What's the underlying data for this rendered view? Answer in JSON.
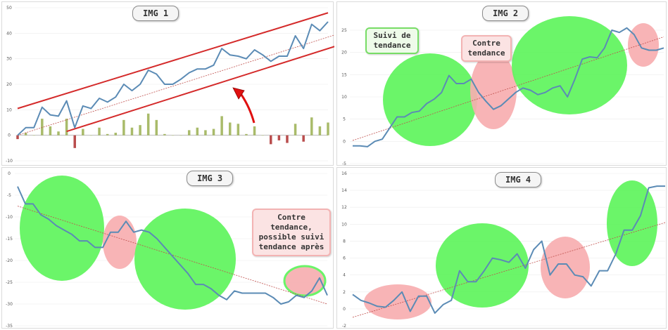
{
  "colors": {
    "line": "#5b8bb5",
    "channel": "#d42a2a",
    "trend": "#c0504d",
    "bar_pos": "#a9bb6a",
    "bar_neg": "#b94d4d",
    "ellipse_green": "#5ef45c",
    "ellipse_pink": "#f7aeb0",
    "arrow": "#e01010"
  },
  "chart_data": [
    {
      "type": "line",
      "title": "IMG 1",
      "ylim": [
        -10,
        50
      ],
      "yticks": [
        "50",
        "40",
        "30",
        "20",
        "10",
        "0",
        "-10"
      ],
      "series": [
        {
          "values": [
            0,
            3,
            3,
            11,
            8,
            7.5,
            13.5,
            3,
            11.5,
            10.5,
            14.5,
            13,
            15,
            20,
            17.5,
            20,
            25.5,
            24,
            20,
            20,
            22,
            24.5,
            26,
            26,
            27.5,
            34,
            31.5,
            31,
            30,
            33.5,
            31.5,
            29,
            31,
            31,
            39,
            34,
            43.5,
            41,
            44.5
          ]
        },
        {
          "type": "bar",
          "values": [
            -1.5,
            1,
            0,
            6.5,
            3.5,
            1.5,
            6.5,
            -5,
            2.5,
            0,
            3,
            0.5,
            1,
            6,
            3,
            4,
            8.5,
            6,
            0.5,
            0,
            0,
            2,
            3,
            2,
            2.5,
            7.5,
            5,
            4.5,
            0.5,
            3.5,
            0,
            -3.5,
            -2,
            -3,
            4.5,
            -2.5,
            7,
            3.5,
            5
          ]
        }
      ],
      "channel_upper": [
        [
          0,
          10.5
        ],
        [
          38,
          48
        ]
      ],
      "channel_lower": [
        [
          6,
          1.5
        ],
        [
          39,
          35
        ]
      ],
      "trend": [
        [
          0,
          0
        ],
        [
          39,
          39.5
        ]
      ]
    },
    {
      "type": "line",
      "title": "IMG 2",
      "ylim": [
        -5,
        25
      ],
      "yticks": [
        "25",
        "20",
        "15",
        "10",
        "5",
        "0",
        "-5"
      ],
      "series": [
        {
          "values": [
            -1,
            -1,
            -1.2,
            0,
            0.5,
            3,
            5.5,
            5.5,
            6.5,
            6.8,
            8.5,
            9.5,
            11,
            14.8,
            13,
            13,
            14,
            11,
            9,
            7.2,
            8,
            9.5,
            11,
            12,
            11.5,
            10.5,
            11,
            12,
            12.5,
            10,
            14,
            18.5,
            19,
            18.8,
            21,
            25,
            24.5,
            25.5,
            24,
            21,
            20.5,
            20.5,
            21
          ]
        }
      ],
      "trend": [
        [
          0,
          0.2
        ],
        [
          42,
          23.5
        ]
      ],
      "notes": [
        "Suivi  de tendance",
        "Contre tendance"
      ]
    },
    {
      "type": "line",
      "title": "IMG 3",
      "ylim": [
        -35,
        0
      ],
      "yticks": [
        "0",
        "-5",
        "-10",
        "-15",
        "-20",
        "-25",
        "-30",
        "-35"
      ],
      "series": [
        {
          "values": [
            -3,
            -7,
            -7,
            -9.5,
            -10.5,
            -12,
            -13,
            -14,
            -15.5,
            -15.5,
            -17,
            -17,
            -13.5,
            -13.5,
            -11,
            -13.5,
            -13,
            -13.5,
            -15,
            -17,
            -19,
            -21,
            -23,
            -25.5,
            -25.5,
            -26.5,
            -28,
            -29,
            -27,
            -27.5,
            -27.5,
            -27.5,
            -27.5,
            -28.5,
            -30,
            -29.5,
            -28,
            -28.5,
            -27,
            -24,
            -28
          ]
        },
        {
          "name": "",
          "values": []
        }
      ],
      "trend": [
        [
          0,
          -7.5
        ],
        [
          40,
          -30
        ]
      ],
      "notes": [
        "Contre tendance, possible suivi tendance après"
      ]
    },
    {
      "type": "line",
      "title": "IMG 4",
      "ylim": [
        -2,
        16
      ],
      "yticks": [
        "16",
        "14",
        "12",
        "10",
        "8",
        "6",
        "4",
        "2",
        "0",
        "-2"
      ],
      "series": [
        {
          "values": [
            1.7,
            1,
            0.7,
            0.3,
            0.2,
            1,
            2,
            -0.3,
            1.5,
            1.5,
            -0.5,
            0.5,
            1,
            4.5,
            3.2,
            3.2,
            4.5,
            6,
            5.8,
            5.5,
            6.5,
            4.8,
            7,
            8,
            4,
            5.3,
            5.3,
            4,
            3.8,
            2.7,
            4.5,
            4.5,
            6.5,
            9.3,
            9.3,
            11,
            14.3,
            14.5,
            14.5
          ]
        }
      ],
      "trend": [
        [
          0,
          -1
        ],
        [
          38,
          10.2
        ]
      ]
    }
  ]
}
